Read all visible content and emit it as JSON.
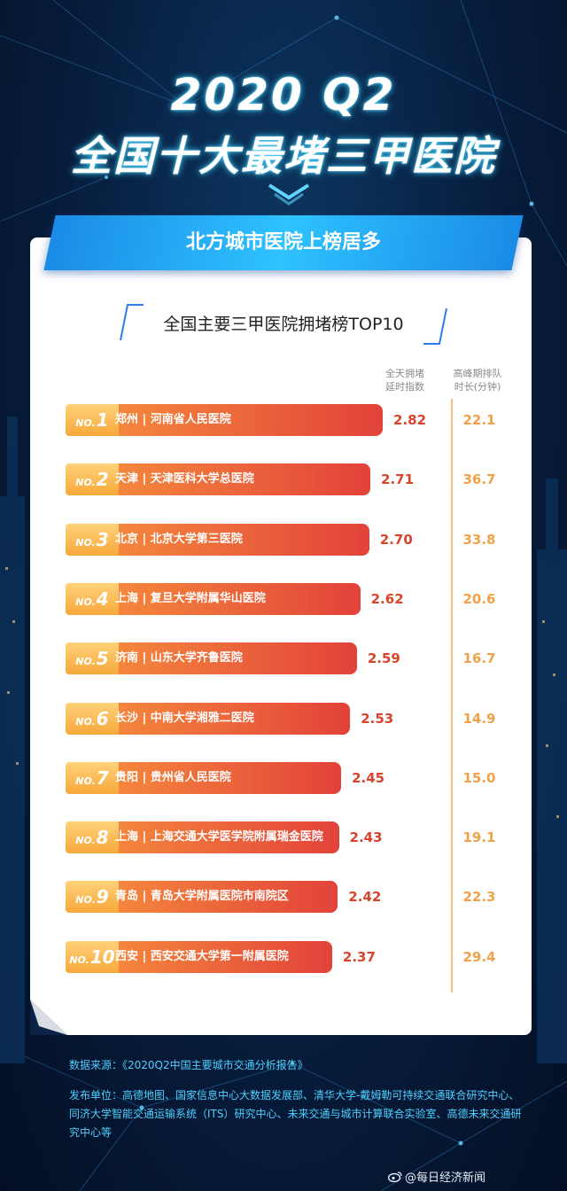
{
  "header": {
    "year_line": "2020 Q2",
    "main_line": "全国十大最堵三甲医院",
    "banner": "北方城市医院上榜居多"
  },
  "chart_data": {
    "type": "bar",
    "orientation": "horizontal",
    "title": "全国主要三甲医院拥堵榜TOP10",
    "columns": [
      "全天拥堵 延时指数",
      "高峰期排队 时长(分钟)"
    ],
    "rows": [
      {
        "rank": "1",
        "city": "郑州",
        "hospital": "河南省人民医院",
        "index": "2.82",
        "wait": "22.1"
      },
      {
        "rank": "2",
        "city": "天津",
        "hospital": "天津医科大学总医院",
        "index": "2.71",
        "wait": "36.7"
      },
      {
        "rank": "3",
        "city": "北京",
        "hospital": "北京大学第三医院",
        "index": "2.70",
        "wait": "33.8"
      },
      {
        "rank": "4",
        "city": "上海",
        "hospital": "复旦大学附属华山医院",
        "index": "2.62",
        "wait": "20.6"
      },
      {
        "rank": "5",
        "city": "济南",
        "hospital": "山东大学齐鲁医院",
        "index": "2.59",
        "wait": "16.7"
      },
      {
        "rank": "6",
        "city": "长沙",
        "hospital": "中南大学湘雅二医院",
        "index": "2.53",
        "wait": "14.9"
      },
      {
        "rank": "7",
        "city": "贵阳",
        "hospital": "贵州省人民医院",
        "index": "2.45",
        "wait": "15.0"
      },
      {
        "rank": "8",
        "city": "上海",
        "hospital": "上海交通大学医学院附属瑞金医院",
        "index": "2.43",
        "wait": "19.1"
      },
      {
        "rank": "9",
        "city": "青岛",
        "hospital": "青岛大学附属医院市南院区",
        "index": "2.42",
        "wait": "22.3"
      },
      {
        "rank": "10",
        "city": "西安",
        "hospital": "西安交通大学第一附属医院",
        "index": "2.37",
        "wait": "29.4"
      }
    ],
    "rank_prefix": "NO.",
    "separator": "|"
  },
  "colors": {
    "bar_start": "#f58a3c",
    "bar_end": "#e2423a",
    "badge": "#f7a83a",
    "index_text": "#d8442c",
    "wait_text": "#f0a24a",
    "banner": "#2ec2ff"
  },
  "footer": {
    "source": "数据来源：《2020Q2中国主要城市交通分析报告》",
    "publisher": "发布单位：高德地图、国家信息中心大数据发展部、清华大学-戴姆勒可持续交通联合研究中心、同济大学智能交通运输系统（ITS）研究中心、未来交通与城市计算联合实验室、高德未来交通研究中心等"
  },
  "watermark": {
    "icon": "weibo-icon",
    "text": "@每日经济新闻"
  }
}
